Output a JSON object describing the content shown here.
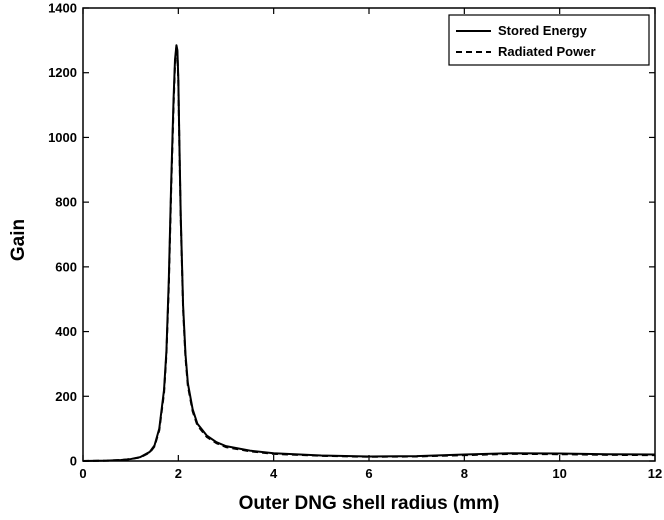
{
  "chart_data": {
    "type": "line",
    "xlabel": "Outer DNG shell radius (mm)",
    "ylabel": "Gain",
    "xlim": [
      0,
      12
    ],
    "ylim": [
      0,
      1400
    ],
    "xticks": [
      0,
      2,
      4,
      6,
      8,
      10,
      12
    ],
    "yticks": [
      0,
      200,
      400,
      600,
      800,
      1000,
      1200,
      1400
    ],
    "grid": false,
    "legend_position": "top-right",
    "series": [
      {
        "name": "Stored Energy",
        "style": "solid",
        "color": "#000000",
        "x": [
          0,
          0.5,
          0.8,
          1.0,
          1.2,
          1.4,
          1.5,
          1.6,
          1.7,
          1.75,
          1.8,
          1.85,
          1.9,
          1.93,
          1.96,
          1.98,
          2.0,
          2.02,
          2.05,
          2.1,
          2.15,
          2.2,
          2.3,
          2.4,
          2.6,
          2.8,
          3.0,
          3.5,
          4.0,
          5.0,
          6.0,
          7.0,
          8.0,
          9.0,
          10.0,
          11.0,
          12.0
        ],
        "y": [
          0,
          1,
          3,
          6,
          12,
          28,
          48,
          100,
          220,
          340,
          560,
          860,
          1120,
          1240,
          1285,
          1270,
          1180,
          1000,
          760,
          480,
          330,
          240,
          160,
          115,
          78,
          58,
          46,
          32,
          24,
          17,
          14,
          15,
          20,
          24,
          23,
          21,
          20
        ]
      },
      {
        "name": "Radiated Power",
        "style": "dashed",
        "color": "#000000",
        "x": [
          0,
          0.5,
          0.8,
          1.0,
          1.2,
          1.4,
          1.5,
          1.6,
          1.7,
          1.75,
          1.8,
          1.85,
          1.9,
          1.93,
          1.96,
          1.98,
          2.0,
          2.02,
          2.05,
          2.1,
          2.15,
          2.2,
          2.3,
          2.4,
          2.6,
          2.8,
          3.0,
          3.5,
          4.0,
          5.0,
          6.0,
          7.0,
          8.0,
          9.0,
          10.0,
          11.0,
          12.0
        ],
        "y": [
          0,
          1,
          3,
          6,
          11,
          26,
          45,
          95,
          210,
          330,
          540,
          840,
          1100,
          1225,
          1280,
          1262,
          1170,
          990,
          750,
          470,
          320,
          232,
          154,
          110,
          74,
          55,
          43,
          30,
          22,
          16,
          13,
          14,
          18,
          22,
          21,
          19,
          18
        ]
      }
    ]
  }
}
